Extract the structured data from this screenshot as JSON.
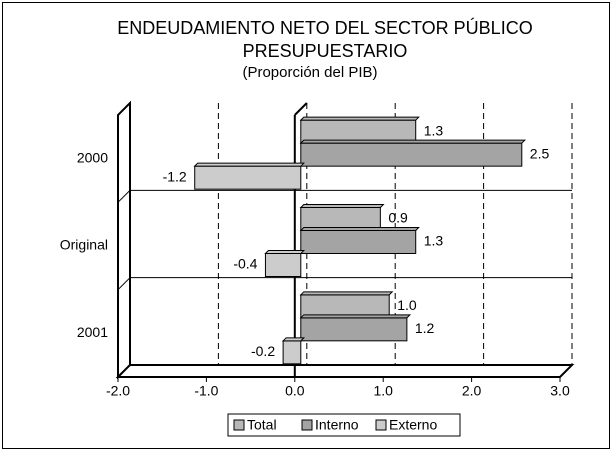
{
  "chart_data": {
    "type": "hbar3d",
    "title": "ENDEUDAMIENTO NETO DEL SECTOR PÚBLICO PRESUPUESTARIO",
    "subtitle": "(Proporción del PIB)",
    "categories": [
      "2000",
      "Original",
      "2001"
    ],
    "series": [
      {
        "name": "Total",
        "color": "#b8b8b8",
        "values": [
          1.3,
          0.9,
          1.0
        ],
        "value_labels": [
          "1.3",
          "0.9",
          "1.0"
        ]
      },
      {
        "name": "Interno",
        "color": "#a4a4a4",
        "values": [
          2.5,
          1.3,
          1.2
        ],
        "value_labels": [
          "2.5",
          "1.3",
          "1.2"
        ]
      },
      {
        "name": "Externo",
        "color": "#cccccc",
        "values": [
          -1.2,
          -0.4,
          -0.2
        ],
        "value_labels": [
          "-1.2",
          "-0.4",
          "-0.2"
        ]
      }
    ],
    "xlim": [
      -2,
      3
    ],
    "xticks": [
      {
        "value": -2,
        "label": "-2.0"
      },
      {
        "value": -1,
        "label": "-1.0"
      },
      {
        "value": 0,
        "label": "0.0"
      },
      {
        "value": 1,
        "label": "1.0"
      },
      {
        "value": 2,
        "label": "2.0"
      },
      {
        "value": 3,
        "label": "3.0"
      }
    ],
    "grid": true,
    "legend": "bottom"
  }
}
